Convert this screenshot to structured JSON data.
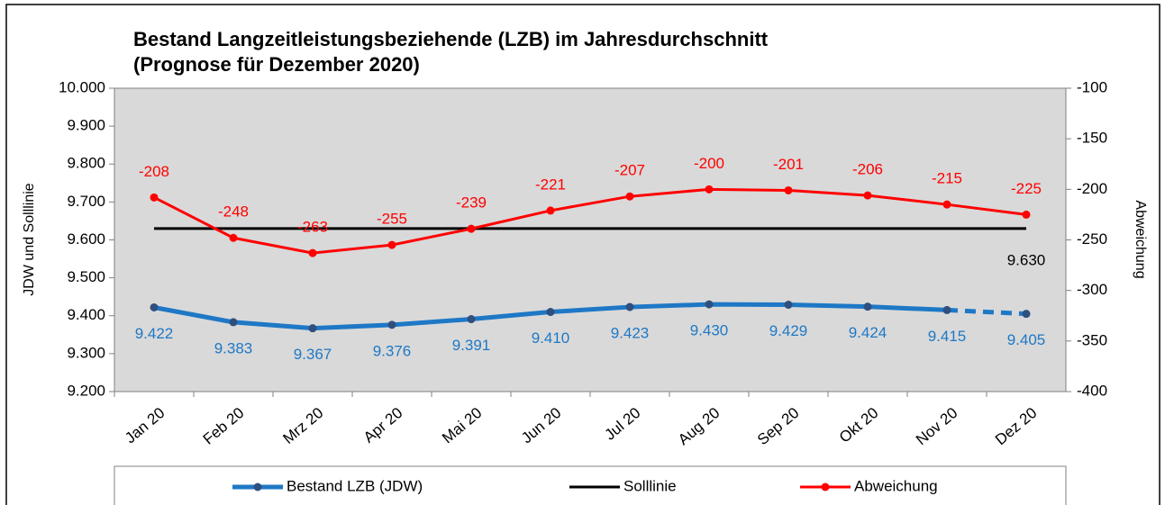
{
  "chart_data": {
    "type": "line",
    "title": "Bestand Langzeitleistungsbeziehende (LZB) im Jahresdurchschnitt",
    "subtitle": "(Prognose für Dezember 2020)",
    "ylabel": "JDW und Solllinie",
    "y2label": "Abweichung",
    "categories": [
      "Jan 20",
      "Feb 20",
      "Mrz 20",
      "Apr 20",
      "Mai 20",
      "Jun 20",
      "Jul 20",
      "Aug 20",
      "Sep 20",
      "Okt 20",
      "Nov 20",
      "Dez 20"
    ],
    "series": [
      {
        "name": "Bestand LZB (JDW)",
        "color": "#1e78c6",
        "values": [
          9422,
          9383,
          9367,
          9376,
          9391,
          9410,
          9423,
          9430,
          9429,
          9424,
          9415,
          9405
        ],
        "value_labels": [
          "9.422",
          "9.383",
          "9.367",
          "9.376",
          "9.391",
          "9.410",
          "9.423",
          "9.430",
          "9.429",
          "9.424",
          "9.415",
          "9.405"
        ]
      },
      {
        "name": "Solllinie",
        "color": "#000000",
        "values": [
          9630,
          9630,
          9630,
          9630,
          9630,
          9630,
          9630,
          9630,
          9630,
          9630,
          9630,
          9630
        ],
        "value_labels": [
          null,
          null,
          null,
          null,
          null,
          null,
          null,
          null,
          null,
          null,
          null,
          "9.630"
        ]
      },
      {
        "name": "Abweichung",
        "color": "#ff0000",
        "axis": "y2",
        "values": [
          -208,
          -248,
          -263,
          -255,
          -239,
          -221,
          -207,
          -200,
          -201,
          -206,
          -215,
          -225
        ]
      }
    ],
    "ylim": [
      9200,
      10000
    ],
    "yticks": [
      {
        "value": 9200,
        "label": "9.200"
      },
      {
        "value": 9300,
        "label": "9.300"
      },
      {
        "value": 9400,
        "label": "9.400"
      },
      {
        "value": 9500,
        "label": "9.500"
      },
      {
        "value": 9600,
        "label": "9.600"
      },
      {
        "value": 9700,
        "label": "9.700"
      },
      {
        "value": 9800,
        "label": "9.800"
      },
      {
        "value": 9900,
        "label": "9.900"
      },
      {
        "value": 10000,
        "label": "10.000"
      }
    ],
    "y2lim": [
      -400,
      -100
    ],
    "y2ticks": [
      -400,
      -350,
      -300,
      -250,
      -200,
      -150,
      -100
    ],
    "grid": false,
    "legend": "bottom"
  }
}
